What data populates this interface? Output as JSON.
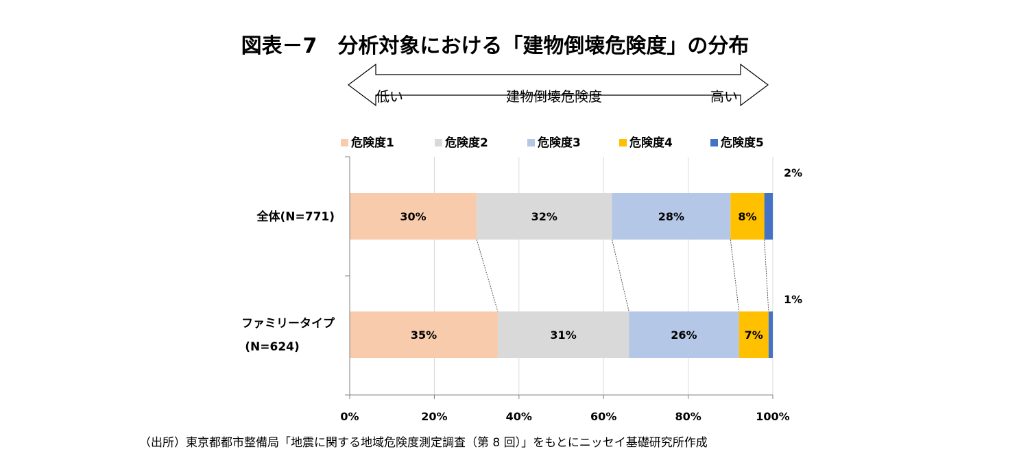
{
  "chart_data": {
    "type": "bar",
    "orientation": "horizontal",
    "stacked": true,
    "percent": true,
    "title": "図表－7　分析対象における「建物倒壊危険度」の分布",
    "scale_arrow": {
      "center_label": "建物倒壊危険度",
      "left_label": "低い",
      "right_label": "高い"
    },
    "categories": [
      "全体(N=771)",
      "ファミリータイプ(N=624)"
    ],
    "category_lines": [
      [
        "全体(N=771)"
      ],
      [
        "ファミリータイプ",
        "(N=624)"
      ]
    ],
    "series": [
      {
        "name": "危険度1",
        "color": "#f8cbad",
        "values": [
          30,
          35
        ],
        "labels": [
          "30%",
          "35%"
        ]
      },
      {
        "name": "危険度2",
        "color": "#d9d9d9",
        "values": [
          32,
          31
        ],
        "labels": [
          "32%",
          "31%"
        ]
      },
      {
        "name": "危険度3",
        "color": "#b4c7e7",
        "values": [
          28,
          26
        ],
        "labels": [
          "28%",
          "26%"
        ]
      },
      {
        "name": "危険度4",
        "color": "#ffc000",
        "values": [
          8,
          7
        ],
        "labels": [
          "8%",
          "7%"
        ]
      },
      {
        "name": "危険度5",
        "color": "#4472c4",
        "values": [
          2,
          1
        ],
        "labels": [
          "2%",
          "1%"
        ]
      }
    ],
    "xlim": [
      0,
      100
    ],
    "x_ticks": [
      "0%",
      "20%",
      "40%",
      "60%",
      "80%",
      "100%"
    ],
    "legend_position": "top",
    "gridlines": true,
    "source": "（出所）東京都都市整備局「地震に関する地域危険度測定調査（第 8 回）」をもとにニッセイ基礎研究所作成"
  }
}
